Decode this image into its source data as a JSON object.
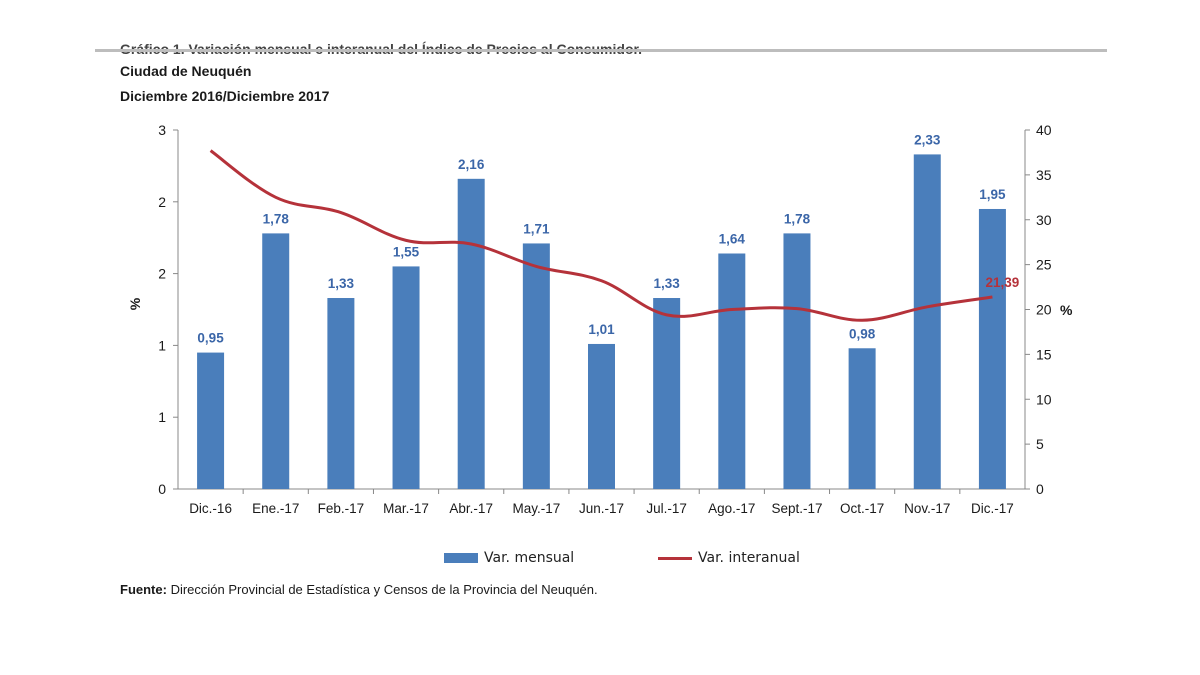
{
  "header": {
    "cut_title": "Gráfico 1. Variación mensual e interanual del Índice de Precios al Consumidor.",
    "subtitle1": "Ciudad de Neuquén",
    "subtitle2": "Diciembre 2016/Diciembre 2017"
  },
  "chart_data": {
    "type": "bar",
    "categories": [
      "Dic.-16",
      "Ene.-17",
      "Feb.-17",
      "Mar.-17",
      "Abr.-17",
      "May.-17",
      "Jun.-17",
      "Jul.-17",
      "Ago.-17",
      "Sept.-17",
      "Oct.-17",
      "Nov.-17",
      "Dic.-17"
    ],
    "series": [
      {
        "name": "Var. mensual",
        "type": "bar",
        "axis": "left",
        "values": [
          0.95,
          1.78,
          1.33,
          1.55,
          2.16,
          1.71,
          1.01,
          1.33,
          1.64,
          1.78,
          0.98,
          2.33,
          1.95
        ],
        "labels": [
          "0,95",
          "1,78",
          "1,33",
          "1,55",
          "2,16",
          "1,71",
          "1,01",
          "1,33",
          "1,64",
          "1,78",
          "0,98",
          "2,33",
          "1,95"
        ],
        "color": "#4a7ebb",
        "label_color": "#3b66a8"
      },
      {
        "name": "Var. interanual",
        "type": "line",
        "axis": "right",
        "values": [
          37.7,
          32.5,
          30.8,
          27.7,
          27.3,
          24.8,
          23.2,
          19.4,
          20.0,
          20.1,
          18.8,
          20.3,
          21.39
        ],
        "end_label": "21,39",
        "color": "#b5323a"
      }
    ],
    "y_left": {
      "label": "%",
      "ylim": [
        0,
        2.5
      ],
      "ticks": [
        0,
        0.5,
        1,
        1.5,
        2,
        2.5
      ],
      "tick_labels": [
        "0",
        "1",
        "1",
        "2",
        "2",
        "3"
      ]
    },
    "y_right": {
      "label": "%",
      "ylim": [
        0,
        40
      ],
      "ticks": [
        0,
        5,
        10,
        15,
        20,
        25,
        30,
        35,
        40
      ],
      "tick_labels": [
        "0",
        "5",
        "10",
        "15",
        "20",
        "25",
        "30",
        "35",
        "40"
      ]
    },
    "grid": false,
    "legend_position": "bottom"
  },
  "footer": {
    "source_label": "Fuente:",
    "source_text": " Dirección Provincial de Estadística y Censos de la Provincia del Neuquén."
  }
}
